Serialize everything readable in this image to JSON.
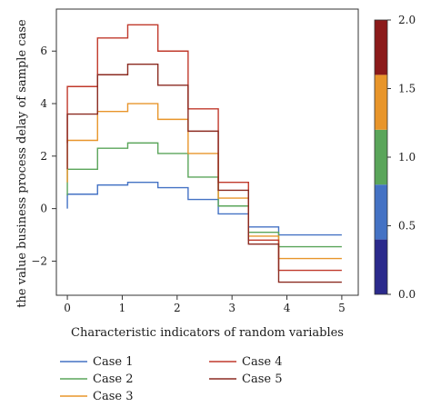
{
  "chart_data": {
    "type": "line",
    "step": true,
    "xlabel": "Characteristic indicators of random variables",
    "ylabel": "the value business process delay of sample case",
    "xlim": [
      -0.2,
      5.3
    ],
    "ylim": [
      -3.3,
      7.6
    ],
    "xticks": [
      0,
      1,
      2,
      3,
      4,
      5
    ],
    "xtick_labels": [
      "0",
      "1",
      "2",
      "3",
      "4",
      "5"
    ],
    "yticks": [
      -2,
      0,
      2,
      4,
      6
    ],
    "ytick_labels": [
      "−2",
      "0",
      "2",
      "4",
      "6"
    ],
    "x": [
      0,
      0.55,
      1.1,
      1.65,
      2.2,
      2.75,
      3.3,
      3.85,
      4.4,
      5
    ],
    "series": [
      {
        "name": "Case 1",
        "color": "#4472c4",
        "values": [
          0.55,
          0.9,
          1.0,
          0.8,
          0.35,
          -0.2,
          -0.7,
          -1.0,
          -1.0,
          -1.0
        ],
        "start": 0.0
      },
      {
        "name": "Case 2",
        "color": "#5aa55a",
        "values": [
          1.5,
          2.3,
          2.5,
          2.1,
          1.2,
          0.1,
          -0.9,
          -1.45,
          -1.45,
          -1.45
        ],
        "start": 0.5
      },
      {
        "name": "Case 3",
        "color": "#e8952a",
        "values": [
          2.6,
          3.7,
          4.0,
          3.4,
          2.1,
          0.4,
          -1.05,
          -1.9,
          -1.9,
          -1.9
        ],
        "start": 1.0
      },
      {
        "name": "Case 4",
        "color": "#c0392b",
        "values": [
          4.65,
          6.5,
          7.0,
          6.0,
          3.8,
          1.0,
          -1.2,
          -2.35,
          -2.35,
          -2.35
        ],
        "start": 2.5
      },
      {
        "name": "Case 5",
        "color": "#8b2a20",
        "values": [
          3.6,
          5.1,
          5.5,
          4.7,
          2.95,
          0.7,
          -1.35,
          -2.8,
          -2.8,
          -2.8
        ],
        "start": 1.5
      }
    ],
    "legend_placement": "bottom",
    "grid": false,
    "colorbar": {
      "ticks": [
        0.0,
        0.5,
        1.0,
        1.5,
        2.0
      ],
      "tick_labels": [
        "0.0",
        "0.5",
        "1.0",
        "1.5",
        "2.0"
      ],
      "range": [
        0.0,
        2.0
      ],
      "colors": [
        "#2b2a8c",
        "#4472c4",
        "#5aa55a",
        "#e8952a",
        "#8b1a1a"
      ]
    }
  }
}
